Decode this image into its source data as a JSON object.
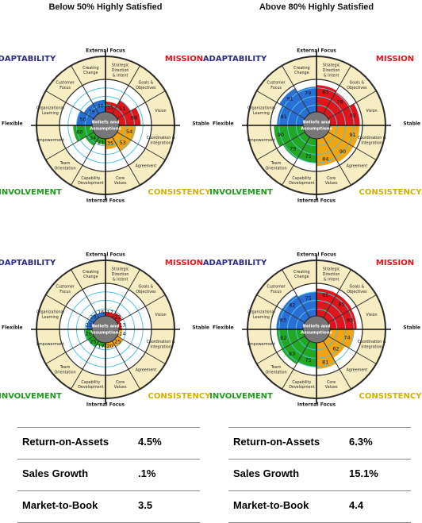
{
  "panels": [
    {
      "title": "Below 50% Highly Satisfied",
      "circles": [
        {
          "traits": [
            "ADAPTABILITY",
            "MISSION",
            "CONSISTENCY",
            "INVOLVEMENT"
          ],
          "axes": {
            "top": "External Focus",
            "bottom": "Internal Focus",
            "left": "Flexible",
            "right": "Stable"
          },
          "center": [
            "Beliefs and",
            "Assumptions"
          ],
          "values": [
            50,
            39,
            40,
            35,
            51,
            68,
            54,
            53,
            35,
            21,
            34,
            60
          ]
        },
        {
          "traits": [
            "ADAPTABILITY",
            "MISSION",
            "CONSISTENCY",
            "INVOLVEMENT"
          ],
          "axes": {
            "top": "External Focus",
            "bottom": "Internal Focus",
            "left": "Flexible",
            "right": "Stable"
          },
          "center": [
            "Beliefs and",
            "Assumptions"
          ],
          "values": [
            21,
            20,
            16,
            17,
            22,
            13,
            14,
            25,
            20,
            17,
            25,
            28
          ]
        }
      ],
      "metrics": [
        {
          "label": "Return-on-Assets",
          "value": "4.5%"
        },
        {
          "label": "Sales Growth",
          "value": ".1%"
        },
        {
          "label": "Market-to-Book",
          "value": "3.5"
        }
      ]
    },
    {
      "title": "Above 80% Highly Satisfied",
      "circles": [
        {
          "traits": [
            "ADAPTABILITY",
            "MISSION",
            "CONSISTENCY",
            "INVOLVEMENT"
          ],
          "axes": {
            "top": "External Focus",
            "bottom": "Internal Focus",
            "left": "Flexible",
            "right": "Stable"
          },
          "center": [
            "Beliefs and",
            "Assumptions"
          ],
          "values": [
            81,
            91,
            79,
            83,
            78,
            92,
            91,
            90,
            84,
            75,
            79,
            90
          ]
        },
        {
          "traits": [
            "ADAPTABILITY",
            "MISSION",
            "CONSISTENCY",
            "INVOLVEMENT"
          ],
          "axes": {
            "top": "External Focus",
            "bottom": "Internal Focus",
            "left": "Flexible",
            "right": "Stable"
          },
          "center": [
            "Beliefs and",
            "Assumptions"
          ],
          "values": [
            83,
            82,
            75,
            85,
            85,
            83,
            74,
            62,
            81,
            75,
            83,
            82
          ]
        }
      ],
      "metrics": [
        {
          "label": "Return-on-Assets",
          "value": "6.3%"
        },
        {
          "label": "Sales Growth",
          "value": "15.1%"
        },
        {
          "label": "Market-to-Book",
          "value": "4.4"
        }
      ]
    }
  ],
  "segment_labels": [
    [
      "Organizational",
      "Learning"
    ],
    [
      "Customer",
      "Focus"
    ],
    [
      "Creating",
      "Change"
    ],
    [
      "Strategic",
      "Direction",
      "& Intent"
    ],
    [
      "Goals &",
      "Objectives"
    ],
    [
      "Vision"
    ],
    [
      "Coordination &",
      "Integration"
    ],
    [
      "Agreement"
    ],
    [
      "Core",
      "Values"
    ],
    [
      "Capability",
      "Development"
    ],
    [
      "Team",
      "Orientation"
    ],
    [
      "Empowerment"
    ]
  ],
  "colors": {
    "ADAPTABILITY": "#2a6fd6",
    "MISSION": "#e0141b",
    "CONSISTENCY": "#f3a411",
    "INVOLVEMENT": "#22a822",
    "outer_ring": "#f6eec2",
    "trait_ADAPTABILITY": "#2b2a8c",
    "trait_MISSION": "#e0141b",
    "trait_CONSISTENCY": "#d1b000",
    "trait_INVOLVEMENT": "#1f9a1f",
    "grid": "#4ec3e0"
  }
}
